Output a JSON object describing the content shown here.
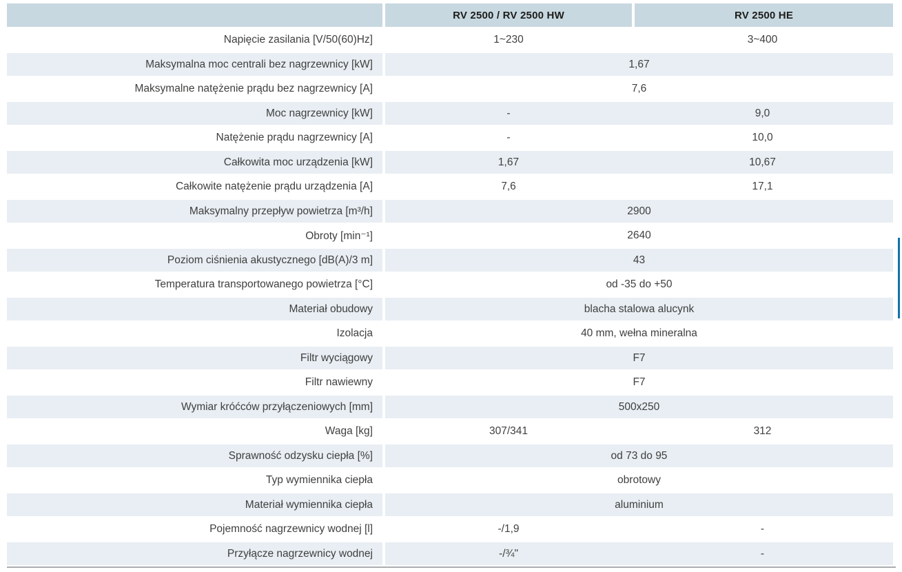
{
  "table": {
    "header": {
      "col_label": "",
      "col2": "RV 2500 / RV 2500 HW",
      "col3": "RV 2500 HE"
    },
    "rows": [
      {
        "label": "Napięcie zasilania [V/50(60)Hz]",
        "values": [
          "1~230",
          "3~400"
        ]
      },
      {
        "label": "Maksymalna moc centrali bez nagrzewnicy [kW]",
        "span": "1,67"
      },
      {
        "label": "Maksymalne natężenie prądu bez nagrzewnicy [A]",
        "span": "7,6"
      },
      {
        "label": "Moc nagrzewnicy [kW]",
        "values": [
          "-",
          "9,0"
        ]
      },
      {
        "label": "Natężenie prądu nagrzewnicy [A]",
        "values": [
          "-",
          "10,0"
        ]
      },
      {
        "label": "Całkowita moc urządzenia [kW]",
        "values": [
          "1,67",
          "10,67"
        ]
      },
      {
        "label": "Całkowite natężenie prądu urządzenia [A]",
        "values": [
          "7,6",
          "17,1"
        ]
      },
      {
        "label": "Maksymalny przepływ powietrza [m³/h]",
        "span": "2900"
      },
      {
        "label": "Obroty [min⁻¹]",
        "span": "2640"
      },
      {
        "label": "Poziom ciśnienia akustycznego [dB(A)/3 m]",
        "span": "43"
      },
      {
        "label": "Temperatura transportowanego powietrza [°C]",
        "span": "od -35 do +50"
      },
      {
        "label": "Materiał obudowy",
        "span": "blacha stalowa alucynk"
      },
      {
        "label": "Izolacja",
        "span": "40 mm, wełna mineralna"
      },
      {
        "label": "Filtr wyciągowy",
        "span": "F7"
      },
      {
        "label": "Filtr nawiewny",
        "span": "F7"
      },
      {
        "label": "Wymiar króćców przyłączeniowych [mm]",
        "span": "500x250"
      },
      {
        "label": "Waga [kg]",
        "values": [
          "307/341",
          "312"
        ]
      },
      {
        "label": "Sprawność odzysku ciepła [%]",
        "span": "od 73 do 95"
      },
      {
        "label": "Typ wymiennika ciepła",
        "span": "obrotowy"
      },
      {
        "label": "Materiał wymiennika ciepła",
        "span": "aluminium"
      },
      {
        "label": "Pojemność nagrzewnicy wodnej [l]",
        "values": [
          "-/1,9",
          "-"
        ]
      },
      {
        "label": "Przyłącze nagrzewnicy wodnej",
        "values": [
          "-/¾\"",
          "-"
        ]
      }
    ]
  },
  "colors": {
    "header_bg": "#c8d8e0",
    "row_alt_bg": "#e8eef3",
    "text": "#3f3f3e",
    "header_text": "#1d1d1b",
    "accent_bar": "#1273aa",
    "bottom_rule": "#a8adaf"
  }
}
